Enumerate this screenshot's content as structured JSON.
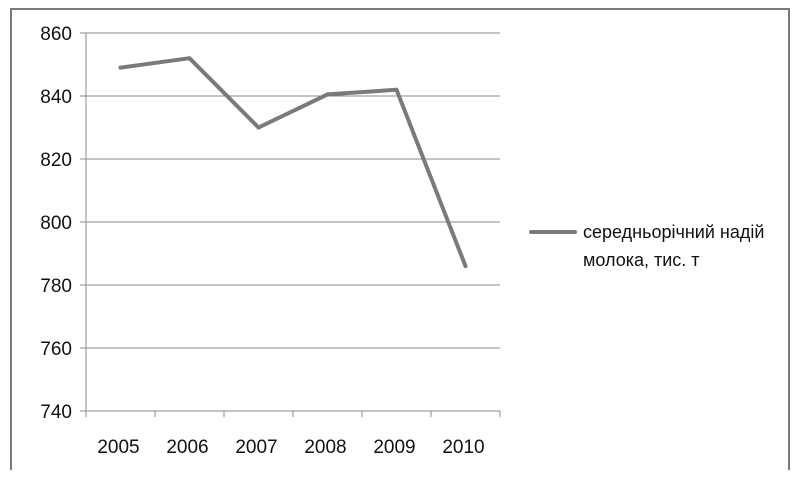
{
  "chart_data": {
    "type": "line",
    "categories": [
      "2005",
      "2006",
      "2007",
      "2008",
      "2009",
      "2010"
    ],
    "series": [
      {
        "name": "середньорічний надій молока, тис. т",
        "values": [
          849,
          852,
          830,
          840.5,
          842,
          786
        ],
        "color": "#7a7a7a"
      }
    ],
    "ylim": [
      740,
      860
    ],
    "yticks": [
      740,
      760,
      780,
      800,
      820,
      840,
      860
    ],
    "grid": true,
    "legend_position": "right",
    "legend_lines": [
      "середньорічний надій",
      "молока, тис. т"
    ]
  }
}
